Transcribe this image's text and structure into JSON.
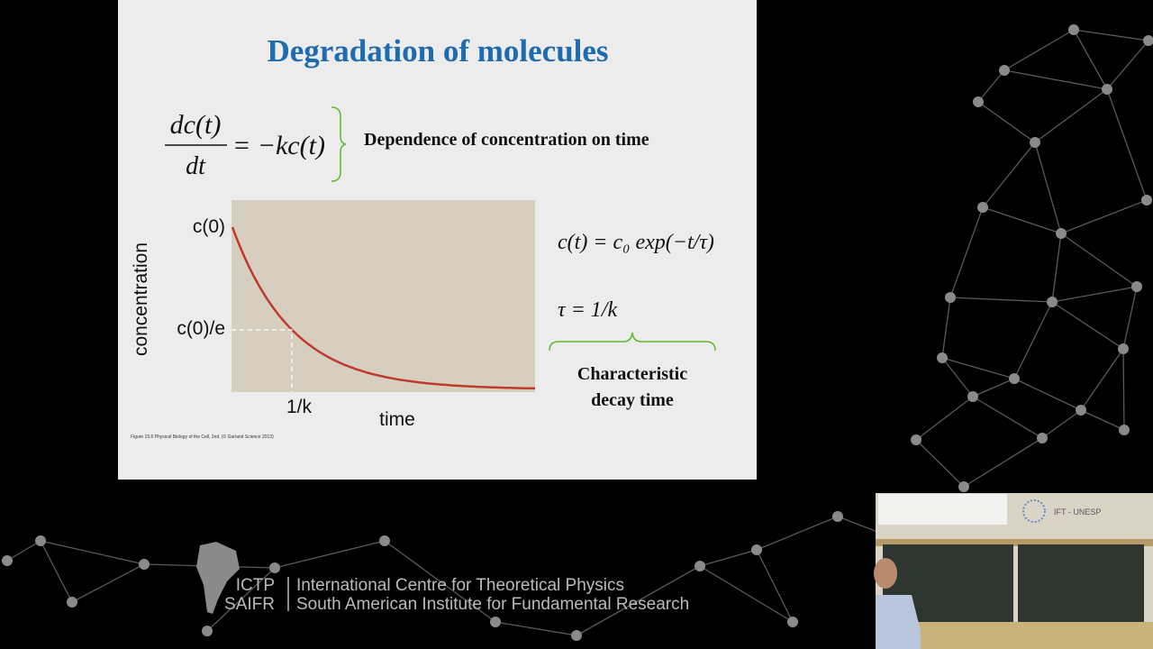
{
  "slide": {
    "title": "Degradation of molecules",
    "equation1": {
      "numerator": "dc(t)",
      "denominator": "dt",
      "rhs": "= −kc(t)"
    },
    "equation1_note": "Dependence of concentration on time",
    "figure": {
      "y_axis_label": "concentration",
      "x_axis_label": "time",
      "y_mark_top": "c(0)",
      "y_mark_mid": "c(0)/e",
      "x_mark": "1/k",
      "caption": "Figure 15.6 Physical Biology of the Cell, 2ed. (© Garland Science 2013)"
    },
    "equation2": "c(t) = c₀ exp(−t/τ)",
    "equation3": "τ = 1/k",
    "brace_note": [
      "Characteristic",
      "decay time"
    ]
  },
  "footer": {
    "short_names": [
      "ICTP",
      "SAIFR"
    ],
    "long_names": [
      "International Centre for Theoretical Physics",
      "South American Institute for Fundamental Research"
    ]
  },
  "webcam": {
    "sign": "IFT - UNESP"
  }
}
